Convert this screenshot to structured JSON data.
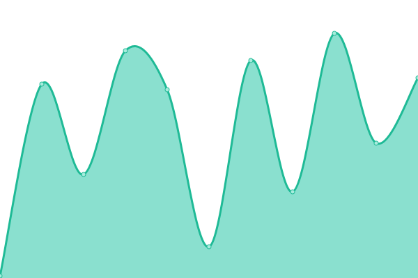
{
  "chart_data": {
    "type": "area",
    "title": "",
    "xlabel": "",
    "ylabel": "",
    "x": [
      0,
      1,
      2,
      3,
      4,
      5,
      6,
      7,
      8,
      9,
      10
    ],
    "series": [
      {
        "values": [
          3,
          279,
          149,
          327,
          271,
          45,
          313,
          124,
          352,
          194,
          288
        ]
      }
    ],
    "xlim": [
      0,
      10
    ],
    "ylim": [
      0,
      400
    ],
    "grid": false,
    "axes_visible": false,
    "curve": "smooth",
    "colors": {
      "fill": "#8ae0cf",
      "line": "#1fba96",
      "marker_fill": "#a8ecdd"
    }
  }
}
